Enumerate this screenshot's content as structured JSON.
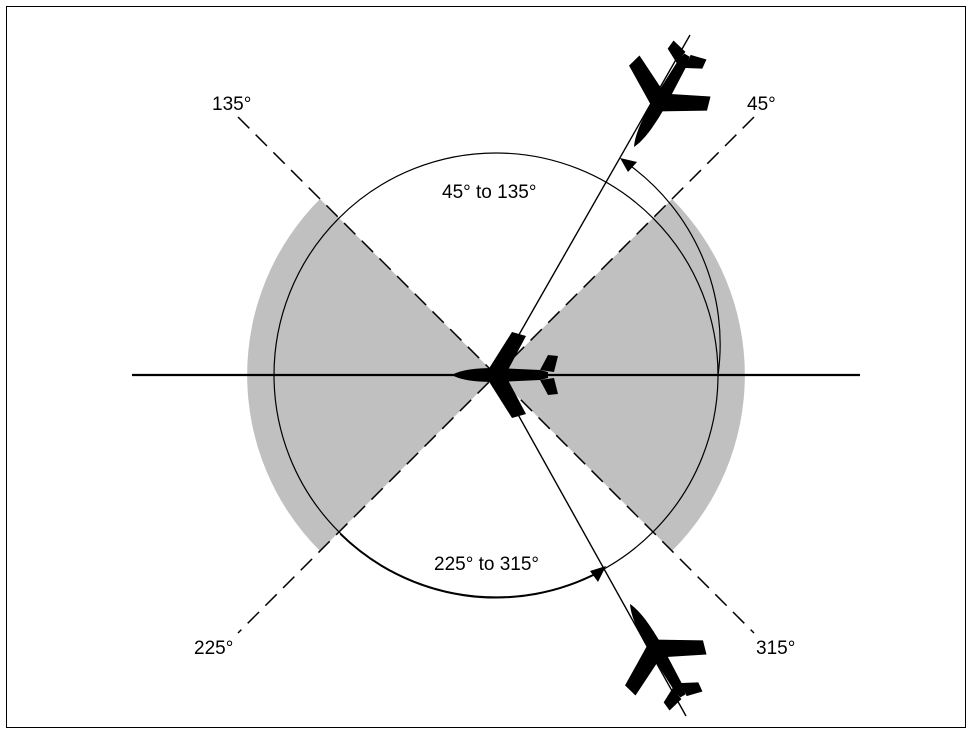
{
  "labels": {
    "deg_135": "135°",
    "deg_45": "45°",
    "deg_225": "225°",
    "deg_315": "315°",
    "range_upper": "45° to 135°",
    "range_lower": "225° to 315°"
  },
  "colors": {
    "shading": "#c0c0c0",
    "ink": "#000000",
    "background": "#ffffff"
  }
}
